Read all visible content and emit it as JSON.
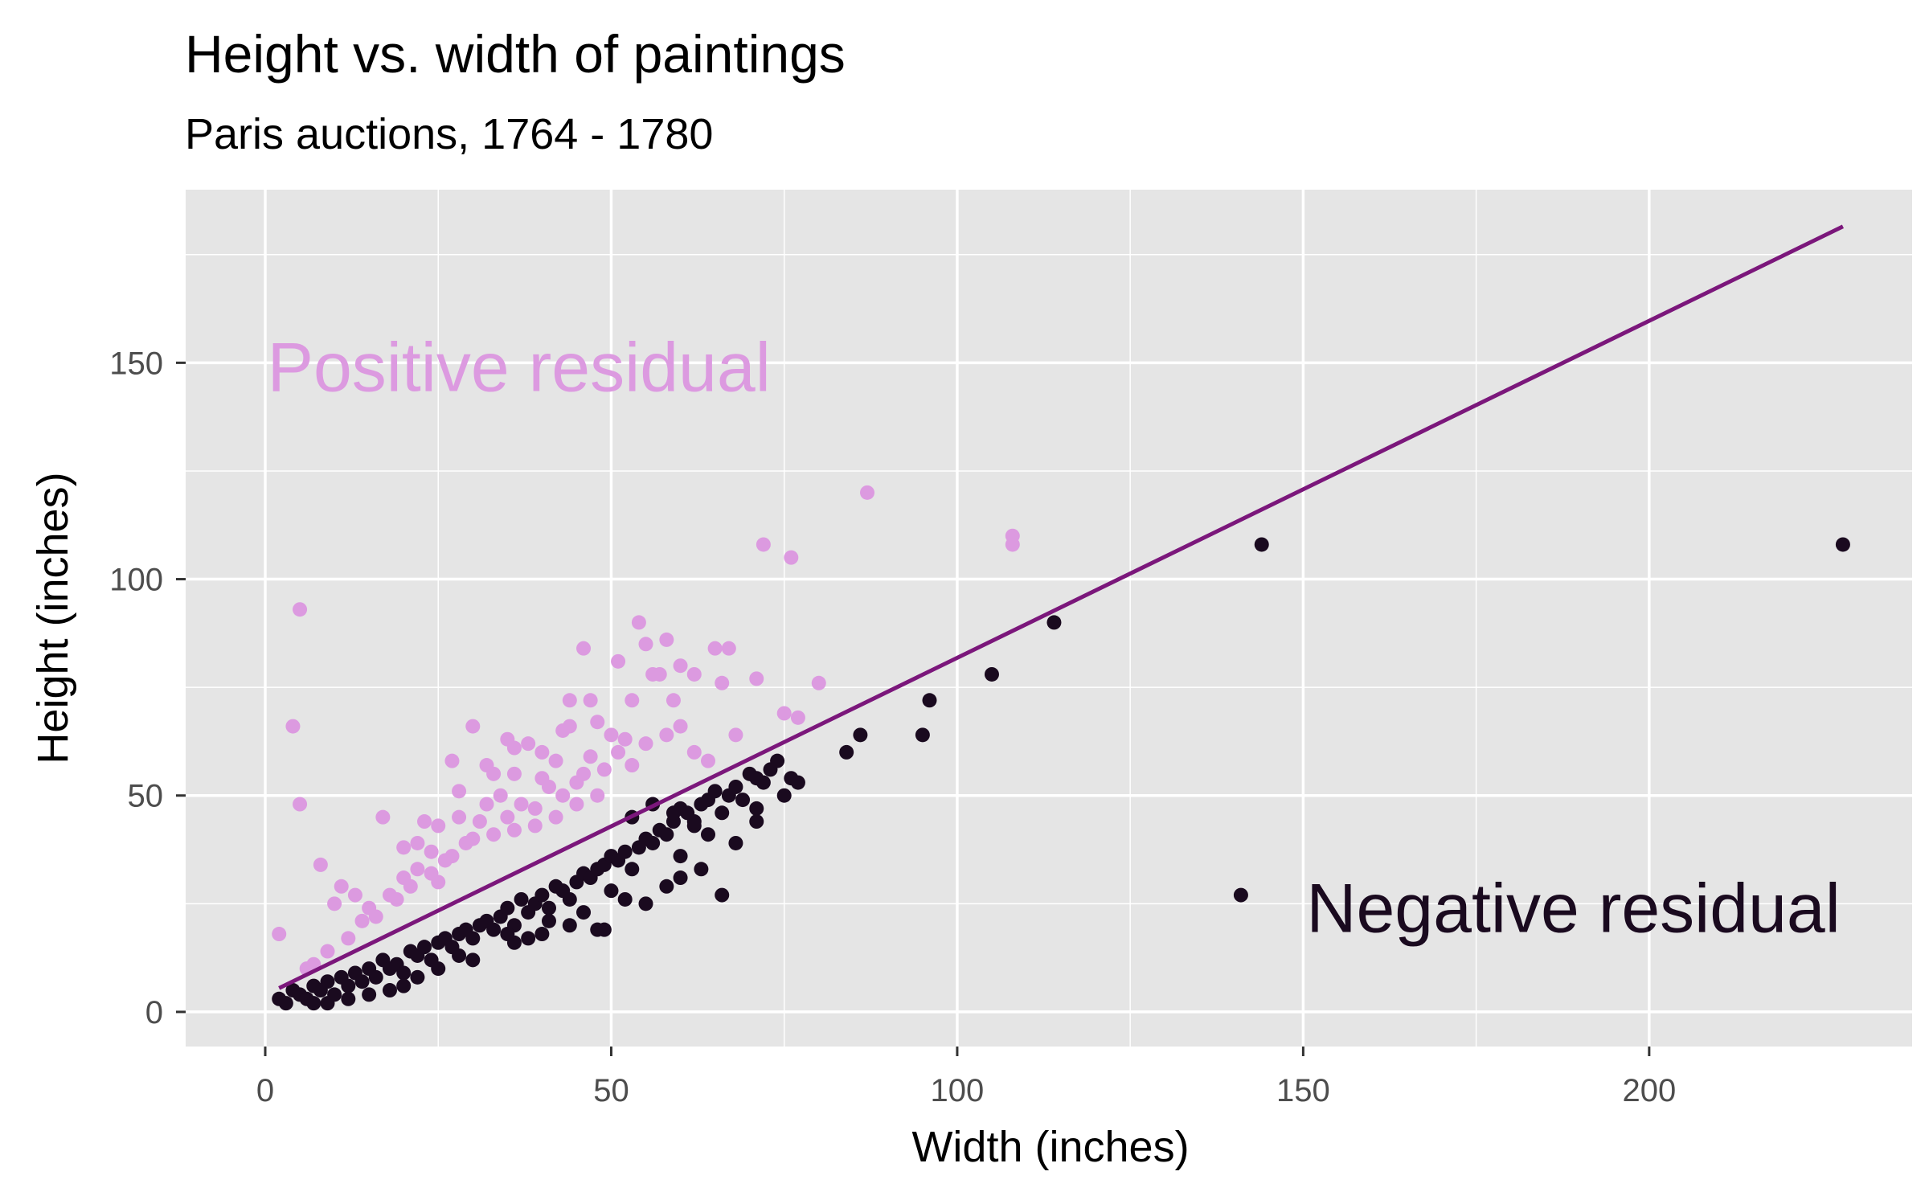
{
  "chart_data": {
    "type": "scatter",
    "title": "Height vs. width of paintings",
    "subtitle": "Paris auctions, 1764 - 1780",
    "xlabel": "Width (inches)",
    "ylabel": "Height (inches)",
    "xlim": [
      -11.5,
      238
    ],
    "ylim": [
      -8,
      190
    ],
    "x_ticks": [
      0,
      50,
      100,
      150,
      200
    ],
    "x_tick_labels": [
      "0",
      "50",
      "100",
      "150",
      "200"
    ],
    "y_ticks": [
      0,
      50,
      100,
      150
    ],
    "y_tick_labels": [
      "0",
      "50",
      "100",
      "150"
    ],
    "grid": true,
    "colors": {
      "positive": "#dc9ae0",
      "negative": "#1a0a1f",
      "fit_line": "#7b177b",
      "panel": "#e5e5e5",
      "grid": "#ffffff"
    },
    "annotations": [
      {
        "text": "Positive residual",
        "group": "positive",
        "x": 1,
        "y": 149
      },
      {
        "text": "Negative residual",
        "group": "negative",
        "x": 150,
        "y": 24
      }
    ],
    "fit_line": {
      "x": [
        2,
        228
      ],
      "y": [
        5.5,
        181.5
      ]
    },
    "series": [
      {
        "group": "positive",
        "points": [
          [
            2,
            18
          ],
          [
            4,
            66
          ],
          [
            5,
            93
          ],
          [
            5,
            48
          ],
          [
            8,
            34
          ],
          [
            10,
            25
          ],
          [
            11,
            29
          ],
          [
            13,
            27
          ],
          [
            17,
            45
          ],
          [
            20,
            38
          ],
          [
            22,
            39
          ],
          [
            23,
            44
          ],
          [
            24,
            37
          ],
          [
            25,
            43
          ],
          [
            27,
            58
          ],
          [
            28,
            51
          ],
          [
            30,
            66
          ],
          [
            32,
            57
          ],
          [
            33,
            55
          ],
          [
            35,
            63
          ],
          [
            36,
            61
          ],
          [
            38,
            62
          ],
          [
            40,
            60
          ],
          [
            42,
            58
          ],
          [
            43,
            65
          ],
          [
            44,
            72
          ],
          [
            45,
            53
          ],
          [
            46,
            84
          ],
          [
            47,
            72
          ],
          [
            48,
            67
          ],
          [
            50,
            64
          ],
          [
            51,
            81
          ],
          [
            52,
            63
          ],
          [
            53,
            72
          ],
          [
            54,
            90
          ],
          [
            55,
            85
          ],
          [
            56,
            78
          ],
          [
            57,
            78
          ],
          [
            58,
            86
          ],
          [
            59,
            72
          ],
          [
            60,
            80
          ],
          [
            62,
            78
          ],
          [
            65,
            84
          ],
          [
            66,
            76
          ],
          [
            67,
            84
          ],
          [
            68,
            64
          ],
          [
            72,
            108
          ],
          [
            76,
            105
          ],
          [
            75,
            69
          ],
          [
            77,
            68
          ],
          [
            80,
            76
          ],
          [
            71,
            77
          ],
          [
            87,
            120
          ],
          [
            108,
            110
          ],
          [
            108,
            108
          ],
          [
            51,
            60
          ],
          [
            47,
            59
          ],
          [
            44,
            66
          ],
          [
            31,
            44
          ],
          [
            34,
            50
          ],
          [
            37,
            48
          ],
          [
            39,
            47
          ],
          [
            41,
            52
          ],
          [
            29,
            39
          ],
          [
            26,
            35
          ],
          [
            21,
            29
          ],
          [
            16,
            22
          ],
          [
            14,
            21
          ],
          [
            12,
            17
          ],
          [
            9,
            14
          ],
          [
            7,
            11
          ],
          [
            6,
            10
          ],
          [
            15,
            24
          ],
          [
            18,
            27
          ],
          [
            19,
            26
          ],
          [
            24,
            32
          ],
          [
            27,
            36
          ],
          [
            30,
            40
          ],
          [
            33,
            41
          ],
          [
            36,
            42
          ],
          [
            39,
            43
          ],
          [
            42,
            45
          ],
          [
            45,
            48
          ],
          [
            48,
            50
          ],
          [
            55,
            62
          ],
          [
            58,
            64
          ],
          [
            60,
            66
          ],
          [
            62,
            60
          ],
          [
            64,
            58
          ],
          [
            28,
            45
          ],
          [
            32,
            48
          ],
          [
            36,
            55
          ],
          [
            40,
            54
          ],
          [
            43,
            50
          ],
          [
            46,
            55
          ],
          [
            49,
            56
          ],
          [
            53,
            57
          ],
          [
            22,
            33
          ],
          [
            25,
            30
          ],
          [
            20,
            31
          ],
          [
            35,
            45
          ]
        ]
      },
      {
        "group": "negative",
        "points": [
          [
            2,
            3
          ],
          [
            3,
            2
          ],
          [
            4,
            5
          ],
          [
            5,
            4
          ],
          [
            6,
            3
          ],
          [
            7,
            6
          ],
          [
            8,
            5
          ],
          [
            9,
            7
          ],
          [
            10,
            4
          ],
          [
            11,
            8
          ],
          [
            12,
            6
          ],
          [
            13,
            9
          ],
          [
            14,
            7
          ],
          [
            15,
            10
          ],
          [
            16,
            8
          ],
          [
            17,
            12
          ],
          [
            18,
            10
          ],
          [
            19,
            11
          ],
          [
            20,
            9
          ],
          [
            21,
            14
          ],
          [
            22,
            13
          ],
          [
            23,
            15
          ],
          [
            24,
            12
          ],
          [
            25,
            16
          ],
          [
            26,
            17
          ],
          [
            27,
            15
          ],
          [
            28,
            18
          ],
          [
            29,
            19
          ],
          [
            30,
            17
          ],
          [
            31,
            20
          ],
          [
            32,
            21
          ],
          [
            33,
            19
          ],
          [
            34,
            22
          ],
          [
            35,
            24
          ],
          [
            36,
            20
          ],
          [
            37,
            26
          ],
          [
            38,
            23
          ],
          [
            39,
            25
          ],
          [
            40,
            27
          ],
          [
            41,
            24
          ],
          [
            42,
            29
          ],
          [
            43,
            28
          ],
          [
            44,
            26
          ],
          [
            45,
            30
          ],
          [
            46,
            32
          ],
          [
            47,
            31
          ],
          [
            48,
            33
          ],
          [
            49,
            34
          ],
          [
            50,
            36
          ],
          [
            51,
            35
          ],
          [
            52,
            37
          ],
          [
            53,
            33
          ],
          [
            54,
            38
          ],
          [
            55,
            40
          ],
          [
            56,
            39
          ],
          [
            57,
            42
          ],
          [
            58,
            41
          ],
          [
            59,
            44
          ],
          [
            60,
            47
          ],
          [
            61,
            46
          ],
          [
            62,
            43
          ],
          [
            63,
            48
          ],
          [
            64,
            49
          ],
          [
            65,
            51
          ],
          [
            66,
            27
          ],
          [
            66,
            46
          ],
          [
            67,
            50
          ],
          [
            68,
            52
          ],
          [
            69,
            49
          ],
          [
            70,
            55
          ],
          [
            71,
            54
          ],
          [
            72,
            53
          ],
          [
            73,
            56
          ],
          [
            74,
            58
          ],
          [
            75,
            50
          ],
          [
            76,
            54
          ],
          [
            77,
            53
          ],
          [
            84,
            60
          ],
          [
            86,
            64
          ],
          [
            95,
            64
          ],
          [
            96,
            72
          ],
          [
            105,
            78
          ],
          [
            114,
            90
          ],
          [
            144,
            108
          ],
          [
            228,
            108
          ],
          [
            141,
            27
          ],
          [
            48,
            19
          ],
          [
            49,
            19
          ],
          [
            46,
            23
          ],
          [
            52,
            26
          ],
          [
            55,
            25
          ],
          [
            58,
            29
          ],
          [
            60,
            31
          ],
          [
            63,
            33
          ],
          [
            40,
            18
          ],
          [
            38,
            17
          ],
          [
            36,
            16
          ],
          [
            35,
            18
          ],
          [
            30,
            12
          ],
          [
            28,
            13
          ],
          [
            25,
            10
          ],
          [
            22,
            8
          ],
          [
            20,
            6
          ],
          [
            18,
            5
          ],
          [
            15,
            4
          ],
          [
            12,
            3
          ],
          [
            9,
            2
          ],
          [
            7,
            2
          ],
          [
            50,
            28
          ],
          [
            44,
            20
          ],
          [
            41,
            21
          ],
          [
            53,
            45
          ],
          [
            56,
            48
          ],
          [
            59,
            46
          ],
          [
            62,
            44
          ],
          [
            71,
            47
          ],
          [
            60,
            36
          ],
          [
            64,
            41
          ],
          [
            68,
            39
          ],
          [
            71,
            44
          ]
        ]
      }
    ]
  }
}
